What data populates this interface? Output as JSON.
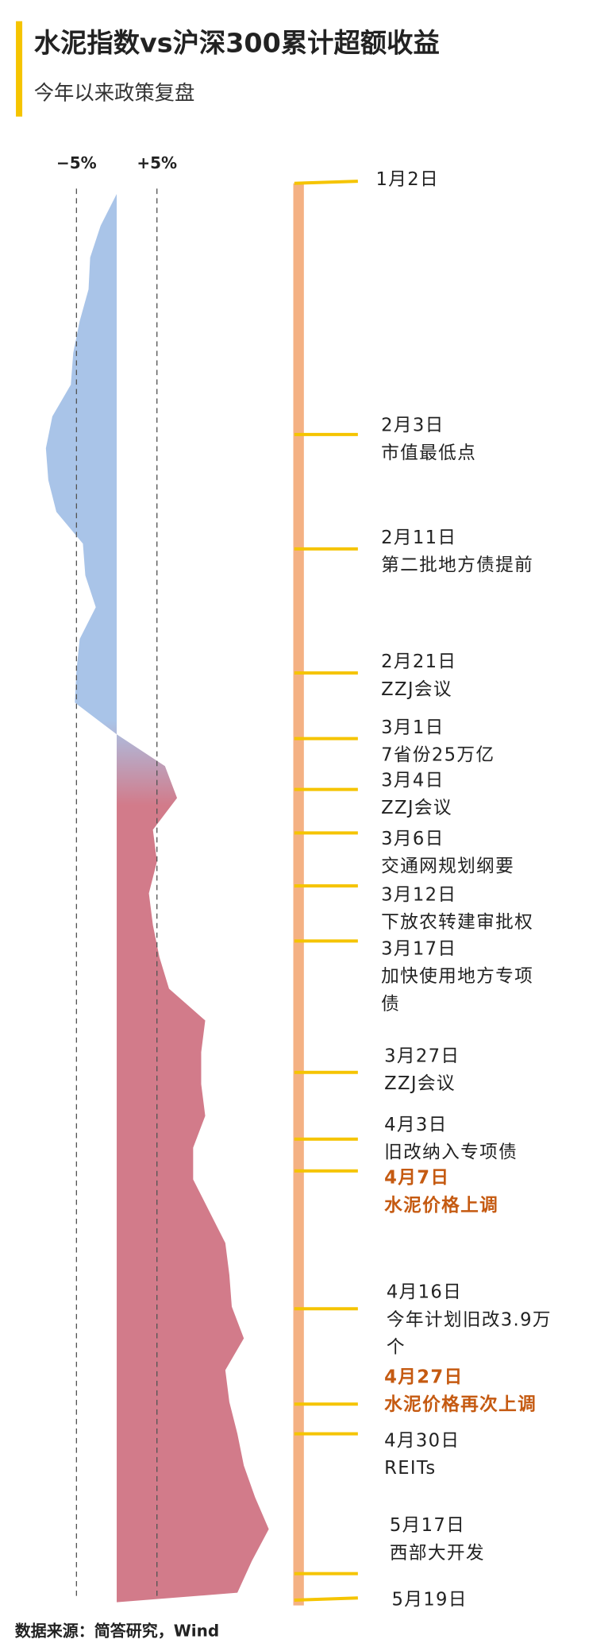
{
  "chart_data": {
    "type": "area",
    "title": "水泥指数vs沪深300累计超额收益",
    "subtitle": "今年以来政策复盘",
    "source": "数据来源：简答研究，Wind",
    "categories": [
      null,
      null,
      null,
      null,
      null,
      null,
      null,
      null,
      null,
      null,
      null,
      null,
      null,
      null,
      null,
      null,
      null,
      null,
      null,
      null,
      null,
      null,
      null,
      null,
      null,
      null,
      null,
      null,
      null,
      null,
      null,
      null,
      null,
      null,
      null,
      null,
      null,
      null,
      null,
      null,
      null,
      null,
      null,
      null,
      null
    ],
    "values": [
      0,
      -2,
      -3.3,
      -3.5,
      -4.6,
      -5.4,
      -5.7,
      -8,
      -8.8,
      -8.5,
      -7.5,
      -4.2,
      -3.9,
      -2.6,
      -4.6,
      -5,
      -5.2,
      0,
      6,
      7.5,
      4.5,
      5,
      4,
      4.5,
      5.3,
      6.5,
      11,
      10.5,
      10.5,
      11,
      9.5,
      9.5,
      11.5,
      13.5,
      14,
      14.3,
      15.8,
      13.5,
      14,
      15,
      15.8,
      17.2,
      18.9,
      16.8,
      15
    ],
    "negative_color": "#a9c4e8",
    "positive_color": "#d27b8a",
    "xlim": [
      -12,
      28
    ],
    "xticks": [
      {
        "value": -5,
        "label": "−5%"
      },
      {
        "value": 5,
        "label": "+5%"
      }
    ],
    "events": [
      {
        "date": "1月2日",
        "lines": []
      },
      {
        "date": "2月3日",
        "lines": [
          "市值最低点"
        ]
      },
      {
        "date": "2月11日",
        "lines": [
          "第二批地方债提前"
        ]
      },
      {
        "date": "2月21日",
        "lines": [
          "ZZJ会议"
        ]
      },
      {
        "date": "3月1日",
        "lines": [
          "7省份25万亿"
        ]
      },
      {
        "date": "3月4日",
        "lines": [
          "ZZJ会议"
        ]
      },
      {
        "date": "3月6日",
        "lines": [
          "交通网规划纲要"
        ]
      },
      {
        "date": "3月12日",
        "lines": [
          "下放农转建审批权"
        ]
      },
      {
        "date": "3月17日",
        "lines": [
          "加快使用地方专项",
          "债"
        ]
      },
      {
        "date": "3月27日",
        "lines": [
          "ZZJ会议"
        ]
      },
      {
        "date": "4月3日",
        "lines": [
          "旧改纳入专项债"
        ]
      },
      {
        "date": "4月7日",
        "lines": [
          "水泥价格上调"
        ],
        "highlight": true
      },
      {
        "date": "4月16日",
        "lines": [
          "今年计划旧改3.9万",
          "个"
        ]
      },
      {
        "date": "4月27日",
        "lines": [
          "水泥价格再次上调"
        ],
        "highlight": true
      },
      {
        "date": "4月30日",
        "lines": [
          "REITs"
        ]
      },
      {
        "date": "5月17日",
        "lines": [
          "西部大开发"
        ]
      },
      {
        "date": "5月19日",
        "lines": []
      }
    ],
    "event_color": "#f5c400"
  }
}
